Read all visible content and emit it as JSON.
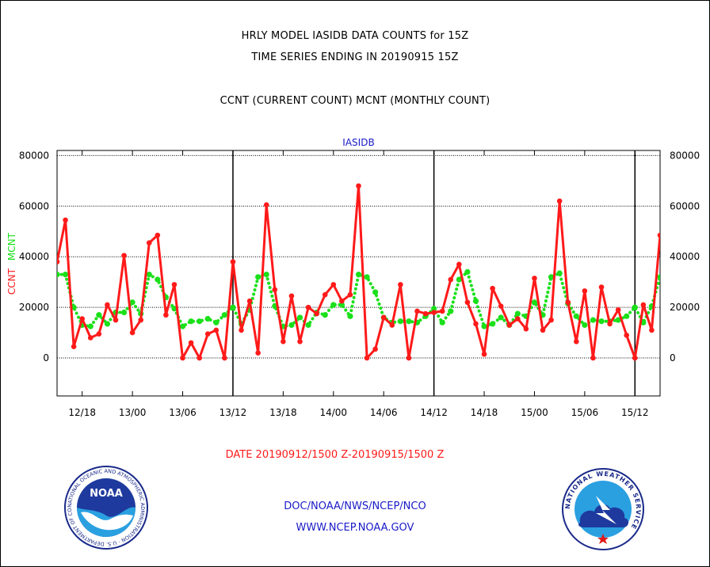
{
  "header": {
    "title1": "HRLY MODEL IASIDB DATA COUNTS for 15Z",
    "title2": "TIME SERIES ENDING IN 20190915 15Z",
    "subtitle": "CCNT (CURRENT COUNT) MCNT (MONTHLY COUNT)"
  },
  "chart_data": {
    "type": "line",
    "title": "IASIDB",
    "xlabel": "DATE 20190912/1500 Z-20190915/1500 Z",
    "ylabel_left": "CCNT",
    "ylabel_right": "MCNT",
    "ylim": [
      -15000,
      82000
    ],
    "yticks": [
      0,
      20000,
      40000,
      60000,
      80000
    ],
    "ytick_labels": [
      "0",
      "20000",
      "40000",
      "60000",
      "80000"
    ],
    "xtick_labels": [
      "12/18",
      "13/00",
      "13/06",
      "13/12",
      "13/18",
      "14/00",
      "14/06",
      "14/12",
      "14/18",
      "15/00",
      "15/06",
      "15/12"
    ],
    "xtick_hours": [
      3,
      9,
      15,
      21,
      27,
      33,
      39,
      45,
      51,
      57,
      63,
      69
    ],
    "day_boundary_hours": [
      21,
      45,
      69
    ],
    "xlim_hours": [
      0,
      72
    ],
    "grid": true,
    "colors": {
      "ccnt": "#ff1a1a",
      "mcnt": "#1ae01a",
      "title": "#1a1ac8",
      "xlabel": "#ff1a1a"
    },
    "series": [
      {
        "name": "CCNT",
        "style": "solid",
        "values": [
          38000,
          54500,
          4500,
          15500,
          8000,
          9500,
          21000,
          15000,
          40500,
          10000,
          15000,
          45500,
          48500,
          17000,
          29000,
          0,
          6000,
          0,
          9500,
          11000,
          0,
          38000,
          11000,
          22500,
          2000,
          60500,
          27000,
          6500,
          24500,
          6500,
          20000,
          17500,
          25000,
          29000,
          22500,
          25000,
          68000,
          0,
          3500,
          16000,
          13000,
          29000,
          0,
          18500,
          17500,
          18000,
          18500,
          31000,
          37000,
          22000,
          13500,
          1500,
          27500,
          20500,
          13000,
          15500,
          11500,
          31500,
          11000,
          15000,
          62000,
          22000,
          6500,
          26500,
          0,
          28000,
          13500,
          19000,
          9000,
          0,
          21000,
          11000,
          48500
        ]
      },
      {
        "name": "MCNT",
        "style": "dotted",
        "values": [
          33000,
          33000,
          20000,
          13000,
          12500,
          17000,
          13500,
          18000,
          18000,
          22000,
          17500,
          33000,
          31000,
          24000,
          19500,
          12500,
          14500,
          14500,
          15500,
          14000,
          17000,
          20000,
          13500,
          19000,
          32000,
          33000,
          20500,
          12500,
          13000,
          16000,
          13000,
          18000,
          17000,
          21000,
          21000,
          16500,
          33000,
          32000,
          26000,
          16000,
          14000,
          14500,
          14500,
          14000,
          16500,
          19500,
          14000,
          18500,
          31000,
          34000,
          22500,
          12500,
          13500,
          16000,
          13000,
          17500,
          16500,
          22000,
          17000,
          32000,
          33500,
          21500,
          16500,
          13000,
          15000,
          14500,
          14500,
          15000,
          16500,
          20000,
          14000,
          20500,
          32000
        ]
      }
    ]
  },
  "footer": {
    "org": "DOC/NOAA/NWS/NCEP/NCO",
    "url": "WWW.NCEP.NOAA.GOV",
    "noaa_logo_text": "NOAA",
    "noaa_ring_text": "NATIONAL OCEANIC AND ATMOSPHERIC ADMINISTRATION · U.S. DEPARTMENT OF COMMERCE ·",
    "nws_ring_text": "NATIONAL WEATHER SERVICE"
  }
}
